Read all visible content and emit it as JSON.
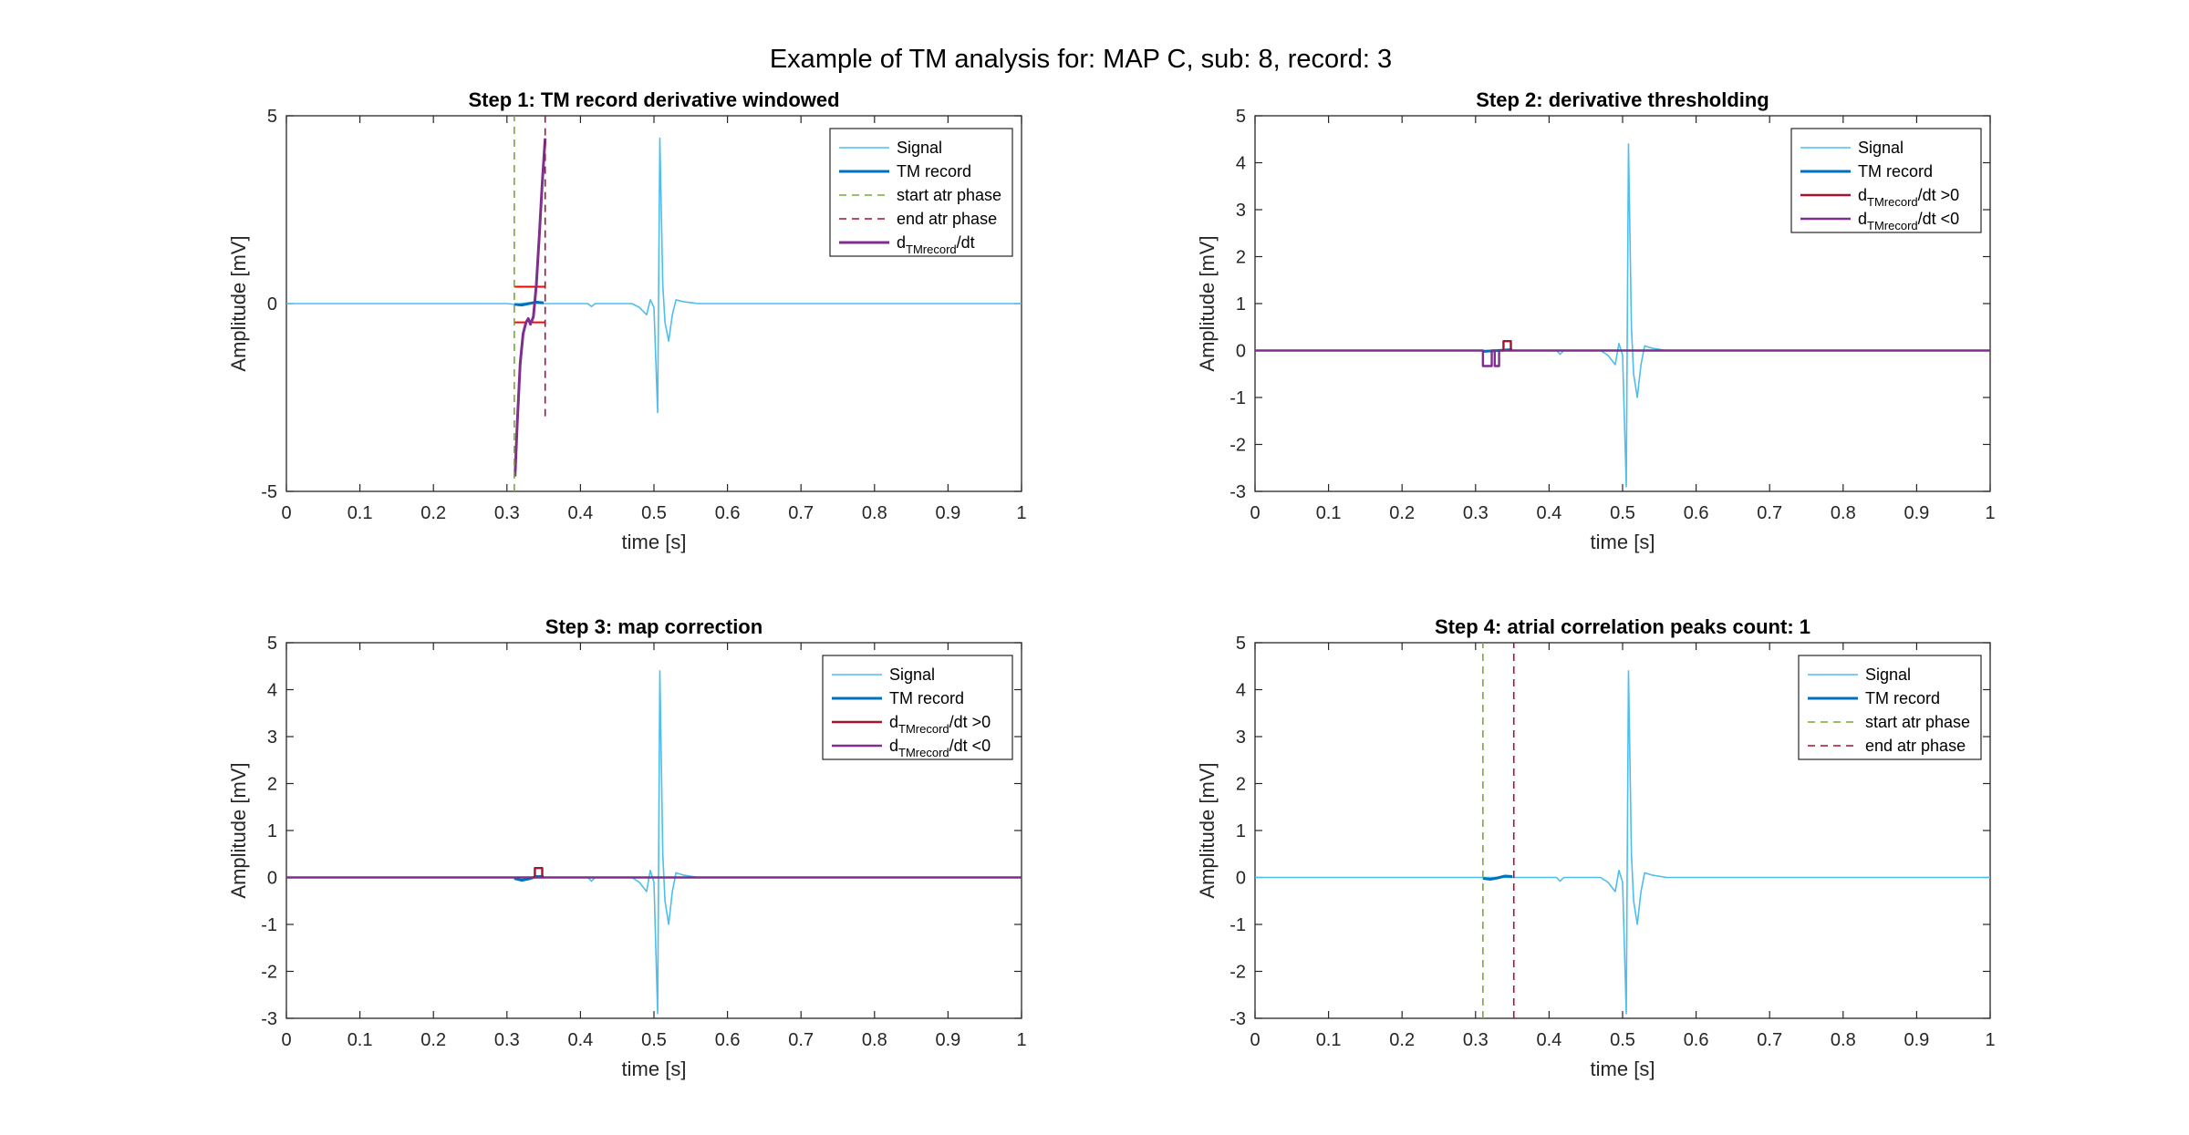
{
  "figure": {
    "title": "Example of TM analysis for: MAP C, sub: 8, record: 3"
  },
  "colors": {
    "signal": "#4DBEEE",
    "tm_record": "#0072BD",
    "start_atr": "#77AC30",
    "end_atr": "#A2142F",
    "deriv": "#7E2F8E",
    "deriv_pos": "#A2142F",
    "deriv_neg": "#7E2F8E",
    "threshold": "#FF0000",
    "axes": "#262626",
    "grid_text": "#262626"
  },
  "chart_data": [
    {
      "id": "step1",
      "type": "line",
      "title": "Step 1: TM record derivative windowed",
      "xlabel": "time [s]",
      "ylabel": "Amplitude [mV]",
      "xlim": [
        0,
        1
      ],
      "ylim": [
        -5,
        5
      ],
      "xticks": [
        "0",
        "0.1",
        "0.2",
        "0.3",
        "0.4",
        "0.5",
        "0.6",
        "0.7",
        "0.8",
        "0.9",
        "1"
      ],
      "yticks": [
        "-5",
        "0",
        "5"
      ],
      "legend_position": "top-right",
      "legend": [
        {
          "label": "Signal",
          "style": "signal"
        },
        {
          "label": "TM record",
          "style": "tm"
        },
        {
          "label": "start atr phase",
          "style": "start"
        },
        {
          "label": "end atr phase",
          "style": "end"
        },
        {
          "label": "d",
          "sub": "TMrecord",
          "suffix": "/dt",
          "style": "deriv"
        }
      ],
      "vlines": [
        {
          "x": 0.31,
          "style": "start",
          "y": [
            -5,
            5
          ]
        },
        {
          "x": 0.352,
          "style": "end",
          "y": [
            -3,
            5
          ]
        }
      ],
      "series": [
        {
          "style": "signal",
          "points": [
            [
              0,
              0
            ],
            [
              0.3,
              0
            ],
            [
              0.31,
              -0.02
            ],
            [
              0.33,
              0.02
            ],
            [
              0.345,
              0
            ],
            [
              0.41,
              0
            ],
            [
              0.415,
              -0.08
            ],
            [
              0.42,
              0
            ],
            [
              0.47,
              0
            ],
            [
              0.48,
              -0.1
            ],
            [
              0.49,
              -0.3
            ],
            [
              0.495,
              0.1
            ],
            [
              0.5,
              -0.1
            ],
            [
              0.505,
              -2.9
            ],
            [
              0.508,
              4.4
            ],
            [
              0.512,
              0.5
            ],
            [
              0.515,
              -0.5
            ],
            [
              0.52,
              -1.0
            ],
            [
              0.525,
              -0.3
            ],
            [
              0.53,
              0.1
            ],
            [
              0.54,
              0.05
            ],
            [
              0.56,
              0
            ],
            [
              1,
              0
            ]
          ]
        },
        {
          "style": "tm",
          "points": [
            [
              0.31,
              -0.02
            ],
            [
              0.32,
              -0.04
            ],
            [
              0.33,
              0.0
            ],
            [
              0.34,
              0.04
            ],
            [
              0.35,
              0.02
            ]
          ]
        },
        {
          "style": "threshold",
          "points": [
            [
              0.31,
              0.45
            ],
            [
              0.352,
              0.45
            ]
          ]
        },
        {
          "style": "threshold",
          "points": [
            [
              0.31,
              -0.5
            ],
            [
              0.325,
              -0.5
            ]
          ]
        },
        {
          "style": "threshold",
          "points": [
            [
              0.335,
              -0.5
            ],
            [
              0.352,
              -0.5
            ]
          ]
        },
        {
          "style": "deriv",
          "points": [
            [
              0.311,
              -4.6
            ],
            [
              0.314,
              -3.2
            ],
            [
              0.318,
              -1.6
            ],
            [
              0.322,
              -0.8
            ],
            [
              0.326,
              -0.5
            ],
            [
              0.329,
              -0.4
            ],
            [
              0.332,
              -0.55
            ],
            [
              0.336,
              -0.35
            ],
            [
              0.34,
              0.5
            ],
            [
              0.344,
              1.8
            ],
            [
              0.348,
              3.2
            ],
            [
              0.352,
              4.4
            ]
          ]
        }
      ]
    },
    {
      "id": "step2",
      "type": "line",
      "title": "Step 2: derivative thresholding",
      "xlabel": "time [s]",
      "ylabel": "Amplitude [mV]",
      "xlim": [
        0,
        1
      ],
      "ylim": [
        -3,
        5
      ],
      "xticks": [
        "0",
        "0.1",
        "0.2",
        "0.3",
        "0.4",
        "0.5",
        "0.6",
        "0.7",
        "0.8",
        "0.9",
        "1"
      ],
      "yticks": [
        "-3",
        "-2",
        "-1",
        "0",
        "1",
        "2",
        "3",
        "4",
        "5"
      ],
      "legend_position": "top-right",
      "legend": [
        {
          "label": "Signal",
          "style": "signal"
        },
        {
          "label": "TM record",
          "style": "tm"
        },
        {
          "label": "d",
          "sub": "TMrecord",
          "suffix": "/dt >0",
          "style": "deriv_pos"
        },
        {
          "label": "d",
          "sub": "TMrecord",
          "suffix": "/dt <0",
          "style": "deriv_neg"
        }
      ],
      "vlines": [],
      "series": [
        {
          "style": "signal",
          "points": [
            [
              0,
              0
            ],
            [
              0.41,
              0
            ],
            [
              0.415,
              -0.08
            ],
            [
              0.42,
              0
            ],
            [
              0.47,
              0
            ],
            [
              0.48,
              -0.1
            ],
            [
              0.49,
              -0.3
            ],
            [
              0.495,
              0.15
            ],
            [
              0.5,
              -0.1
            ],
            [
              0.505,
              -2.9
            ],
            [
              0.508,
              4.4
            ],
            [
              0.512,
              0.5
            ],
            [
              0.515,
              -0.5
            ],
            [
              0.52,
              -1.0
            ],
            [
              0.525,
              -0.3
            ],
            [
              0.53,
              0.1
            ],
            [
              0.54,
              0.05
            ],
            [
              0.56,
              0
            ],
            [
              1,
              0
            ]
          ]
        },
        {
          "style": "tm",
          "points": [
            [
              0.31,
              -0.02
            ],
            [
              0.33,
              0.0
            ],
            [
              0.35,
              0.02
            ]
          ]
        },
        {
          "style": "deriv_neg",
          "points": [
            [
              0,
              0
            ],
            [
              0.31,
              0
            ],
            [
              0.31,
              -0.33
            ],
            [
              0.322,
              -0.33
            ],
            [
              0.322,
              0
            ],
            [
              0.326,
              0
            ],
            [
              0.326,
              -0.33
            ],
            [
              0.332,
              -0.33
            ],
            [
              0.332,
              0
            ],
            [
              1,
              0
            ]
          ]
        },
        {
          "style": "deriv_pos",
          "points": [
            [
              0.338,
              0
            ],
            [
              0.338,
              0.2
            ],
            [
              0.348,
              0.2
            ],
            [
              0.348,
              0
            ]
          ]
        }
      ]
    },
    {
      "id": "step3",
      "type": "line",
      "title": "Step 3: map correction",
      "xlabel": "time [s]",
      "ylabel": "Amplitude [mV]",
      "xlim": [
        0,
        1
      ],
      "ylim": [
        -3,
        5
      ],
      "xticks": [
        "0",
        "0.1",
        "0.2",
        "0.3",
        "0.4",
        "0.5",
        "0.6",
        "0.7",
        "0.8",
        "0.9",
        "1"
      ],
      "yticks": [
        "-3",
        "-2",
        "-1",
        "0",
        "1",
        "2",
        "3",
        "4",
        "5"
      ],
      "legend_position": "top-right",
      "legend": [
        {
          "label": "Signal",
          "style": "signal"
        },
        {
          "label": "TM record",
          "style": "tm"
        },
        {
          "label": "d",
          "sub": "TMrecord",
          "suffix": "/dt >0",
          "style": "deriv_pos"
        },
        {
          "label": "d",
          "sub": "TMrecord",
          "suffix": "/dt <0",
          "style": "deriv_neg"
        }
      ],
      "vlines": [],
      "series": [
        {
          "style": "signal",
          "points": [
            [
              0,
              0
            ],
            [
              0.41,
              0
            ],
            [
              0.415,
              -0.08
            ],
            [
              0.42,
              0
            ],
            [
              0.47,
              0
            ],
            [
              0.48,
              -0.1
            ],
            [
              0.49,
              -0.3
            ],
            [
              0.495,
              0.15
            ],
            [
              0.5,
              -0.1
            ],
            [
              0.505,
              -2.9
            ],
            [
              0.508,
              4.4
            ],
            [
              0.512,
              0.5
            ],
            [
              0.515,
              -0.5
            ],
            [
              0.52,
              -1.0
            ],
            [
              0.525,
              -0.3
            ],
            [
              0.53,
              0.1
            ],
            [
              0.54,
              0.05
            ],
            [
              0.56,
              0
            ],
            [
              1,
              0
            ]
          ]
        },
        {
          "style": "tm",
          "points": [
            [
              0.31,
              -0.02
            ],
            [
              0.32,
              -0.06
            ],
            [
              0.33,
              -0.03
            ],
            [
              0.34,
              0.02
            ],
            [
              0.35,
              0.02
            ]
          ]
        },
        {
          "style": "deriv_neg",
          "points": [
            [
              0,
              0
            ],
            [
              1,
              0
            ]
          ]
        },
        {
          "style": "deriv_pos",
          "points": [
            [
              0.338,
              0
            ],
            [
              0.338,
              0.2
            ],
            [
              0.348,
              0.2
            ],
            [
              0.348,
              0
            ]
          ]
        }
      ]
    },
    {
      "id": "step4",
      "type": "line",
      "title": "Step 4: atrial correlation peaks count: 1",
      "xlabel": "time [s]",
      "ylabel": "Amplitude [mV]",
      "xlim": [
        0,
        1
      ],
      "ylim": [
        -3,
        5
      ],
      "xticks": [
        "0",
        "0.1",
        "0.2",
        "0.3",
        "0.4",
        "0.5",
        "0.6",
        "0.7",
        "0.8",
        "0.9",
        "1"
      ],
      "yticks": [
        "-3",
        "-2",
        "-1",
        "0",
        "1",
        "2",
        "3",
        "4",
        "5"
      ],
      "legend_position": "top-right",
      "legend": [
        {
          "label": "Signal",
          "style": "signal"
        },
        {
          "label": "TM record",
          "style": "tm"
        },
        {
          "label": "start atr phase",
          "style": "start"
        },
        {
          "label": "end atr phase",
          "style": "end"
        }
      ],
      "vlines": [
        {
          "x": 0.31,
          "style": "start",
          "y": [
            -3,
            5
          ]
        },
        {
          "x": 0.352,
          "style": "end",
          "y": [
            -3,
            5
          ]
        }
      ],
      "series": [
        {
          "style": "signal",
          "points": [
            [
              0,
              0
            ],
            [
              0.41,
              0
            ],
            [
              0.415,
              -0.08
            ],
            [
              0.42,
              0
            ],
            [
              0.47,
              0
            ],
            [
              0.48,
              -0.1
            ],
            [
              0.49,
              -0.3
            ],
            [
              0.495,
              0.15
            ],
            [
              0.5,
              -0.1
            ],
            [
              0.505,
              -2.9
            ],
            [
              0.508,
              4.4
            ],
            [
              0.512,
              0.5
            ],
            [
              0.515,
              -0.5
            ],
            [
              0.52,
              -1.0
            ],
            [
              0.525,
              -0.3
            ],
            [
              0.53,
              0.1
            ],
            [
              0.54,
              0.05
            ],
            [
              0.56,
              0
            ],
            [
              1,
              0
            ]
          ]
        },
        {
          "style": "tm",
          "points": [
            [
              0.31,
              -0.02
            ],
            [
              0.32,
              -0.04
            ],
            [
              0.33,
              -0.01
            ],
            [
              0.34,
              0.03
            ],
            [
              0.35,
              0.02
            ]
          ]
        }
      ]
    }
  ]
}
